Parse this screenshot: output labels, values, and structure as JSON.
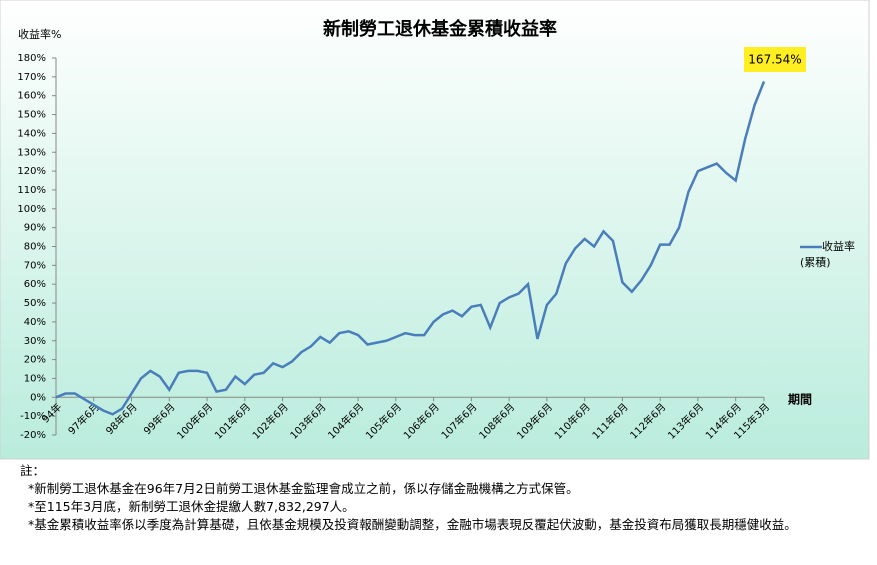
{
  "chart_data": {
    "type": "line",
    "title": "新制勞工退休基金累積收益率",
    "y_label": "收益率%",
    "x_label": "期間",
    "annotation": "167.54%",
    "categories": [
      "94年",
      null,
      null,
      null,
      "97年6月",
      null,
      null,
      null,
      "98年6月",
      null,
      null,
      null,
      "99年6月",
      null,
      null,
      null,
      "100年6月",
      null,
      null,
      null,
      "101年6月",
      null,
      null,
      null,
      "102年6月",
      null,
      null,
      null,
      "103年6月",
      null,
      null,
      null,
      "104年6月",
      null,
      null,
      null,
      "105年6月",
      null,
      null,
      null,
      "106年6月",
      null,
      null,
      null,
      "107年6月",
      null,
      null,
      null,
      "108年6月",
      null,
      null,
      null,
      "109年6月",
      null,
      null,
      null,
      "110年6月",
      null,
      null,
      null,
      "111年6月",
      null,
      null,
      null,
      "112年6月",
      null,
      null,
      null,
      "113年6月",
      null,
      null,
      null,
      "114年6月",
      null,
      null,
      "115年3月"
    ],
    "series": [
      {
        "name": "收益率(累積)",
        "color": "#4a7ebb",
        "values": [
          0,
          2,
          2,
          -1,
          -4,
          -7,
          -9,
          -6,
          2,
          10,
          14,
          11,
          4,
          13,
          14,
          14,
          13,
          3,
          4,
          11,
          7,
          12,
          13,
          18,
          16,
          19,
          24,
          27,
          32,
          29,
          34,
          35,
          33,
          28,
          29,
          30,
          32,
          34,
          33,
          33,
          40,
          44,
          46,
          43,
          48,
          49,
          37,
          50,
          53,
          55,
          60,
          31,
          49,
          55,
          71,
          79,
          84,
          80,
          88,
          83,
          61,
          56,
          62,
          70,
          81,
          81,
          90,
          109,
          120,
          122,
          124,
          119,
          115,
          137,
          155,
          167.54
        ]
      }
    ],
    "ylim": [
      -20,
      180
    ],
    "yticks": [
      {
        "value": -20,
        "label": "-20%"
      },
      {
        "value": -10,
        "label": "-10%"
      },
      {
        "value": 0,
        "label": "0%"
      },
      {
        "value": 10,
        "label": "10%"
      },
      {
        "value": 20,
        "label": "20%"
      },
      {
        "value": 30,
        "label": "30%"
      },
      {
        "value": 40,
        "label": "40%"
      },
      {
        "value": 50,
        "label": "50%"
      },
      {
        "value": 60,
        "label": "60%"
      },
      {
        "value": 70,
        "label": "70%"
      },
      {
        "value": 80,
        "label": "80%"
      },
      {
        "value": 90,
        "label": "90%"
      },
      {
        "value": 100,
        "label": "100%"
      },
      {
        "value": 110,
        "label": "110%"
      },
      {
        "value": 120,
        "label": "120%"
      },
      {
        "value": 130,
        "label": "130%"
      },
      {
        "value": 140,
        "label": "140%"
      },
      {
        "value": 150,
        "label": "150%"
      },
      {
        "value": 160,
        "label": "160%"
      },
      {
        "value": 170,
        "label": "170%"
      },
      {
        "value": 180,
        "label": "180%"
      }
    ],
    "legend": "right"
  },
  "notes": {
    "heading": "註：",
    "items": [
      "*新制勞工退休基金在96年7月2日前勞工退休基金監理會成立之前，係以存儲金融機構之方式保管。",
      "*至115年3月底，新制勞工退休金提繳人數7,832,297人。",
      "*基金累積收益率係以季度為計算基礎，且依基金規模及投資報酬變動調整，金融市場表現反覆起伏波動，基金投資布局獲取長期穩健收益。"
    ]
  }
}
